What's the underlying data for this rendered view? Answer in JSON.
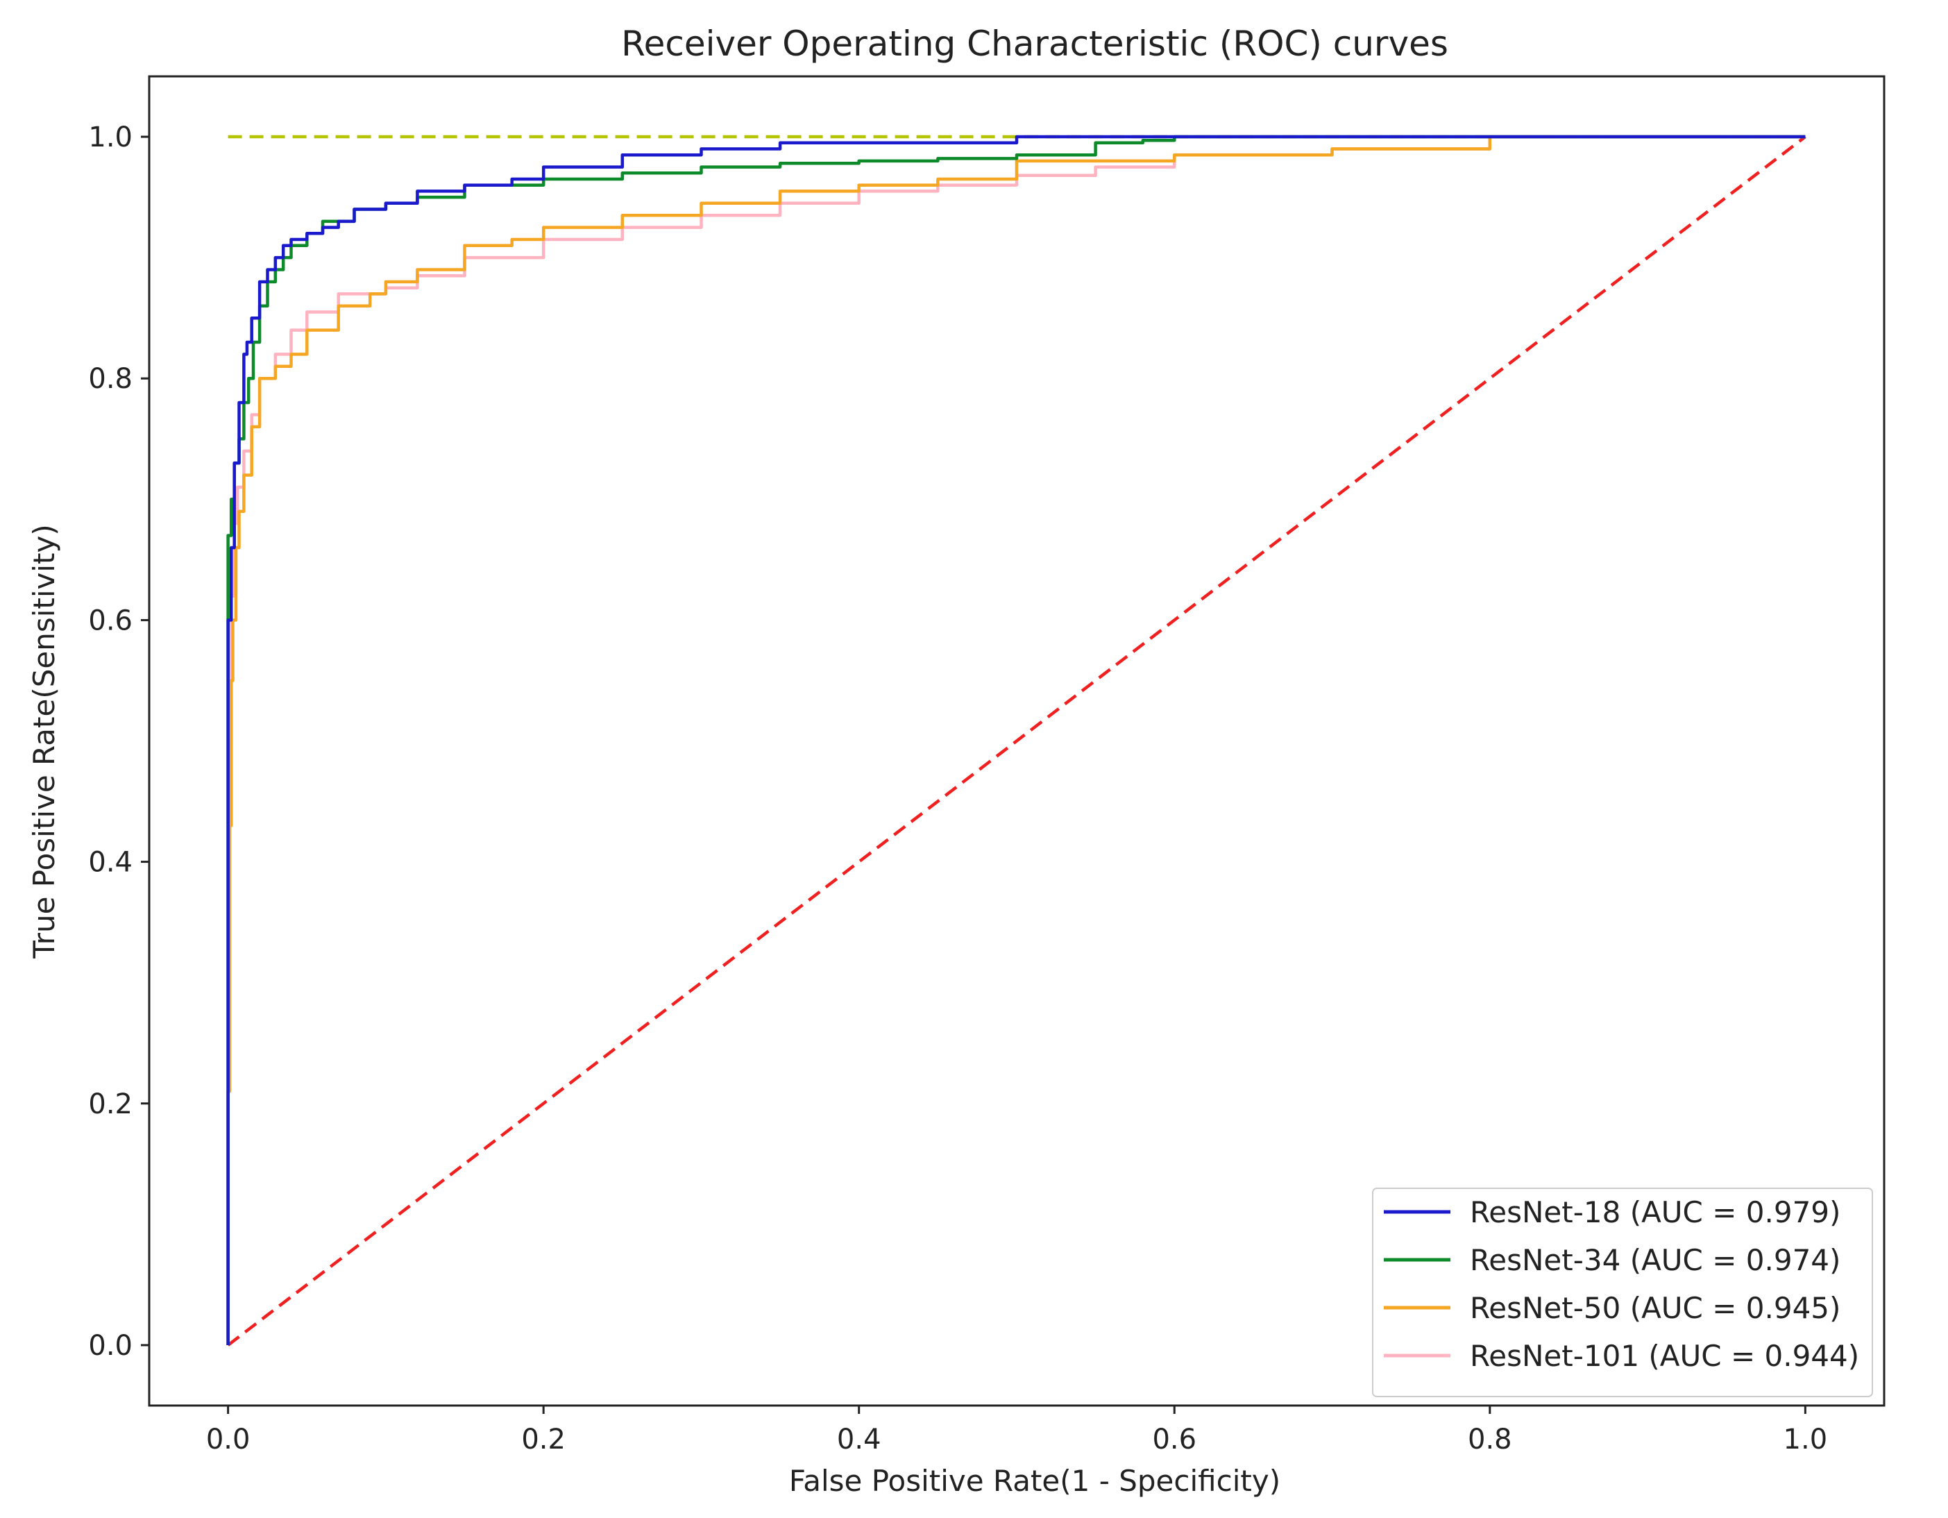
{
  "chart_data": {
    "type": "line",
    "title": "Receiver Operating Characteristic (ROC) curves",
    "xlabel": "False Positive Rate(1 - Specificity)",
    "ylabel": "True Positive Rate(Sensitivity)",
    "xlim": [
      -0.05,
      1.05
    ],
    "ylim": [
      -0.05,
      1.05
    ],
    "xticks": [
      0.0,
      0.2,
      0.4,
      0.6,
      0.8,
      1.0
    ],
    "xtick_labels": [
      "0.0",
      "0.2",
      "0.4",
      "0.6",
      "0.8",
      "1.0"
    ],
    "yticks": [
      0.0,
      0.2,
      0.4,
      0.6,
      0.8,
      1.0
    ],
    "ytick_labels": [
      "0.0",
      "0.2",
      "0.4",
      "0.6",
      "0.8",
      "1.0"
    ],
    "grid": false,
    "legend_position": "lower-right",
    "series": [
      {
        "name": "ResNet-18 (AUC = 0.979)",
        "color": "#1a1acc",
        "x": [
          0,
          0,
          0.002,
          0.004,
          0.007,
          0.01,
          0.012,
          0.015,
          0.02,
          0.025,
          0.03,
          0.035,
          0.04,
          0.05,
          0.06,
          0.07,
          0.08,
          0.1,
          0.12,
          0.15,
          0.18,
          0.2,
          0.25,
          0.3,
          0.35,
          0.4,
          0.5,
          0.6,
          0.7,
          0.8,
          0.9,
          1.0
        ],
        "y": [
          0,
          0.55,
          0.6,
          0.66,
          0.73,
          0.78,
          0.82,
          0.83,
          0.85,
          0.88,
          0.89,
          0.9,
          0.91,
          0.915,
          0.92,
          0.925,
          0.93,
          0.94,
          0.945,
          0.955,
          0.96,
          0.965,
          0.975,
          0.985,
          0.99,
          0.995,
          0.995,
          1.0,
          1.0,
          1.0,
          1.0,
          1.0
        ]
      },
      {
        "name": "ResNet-34 (AUC = 0.974)",
        "color": "#0d8a2a",
        "x": [
          0,
          0,
          0.002,
          0.004,
          0.007,
          0.01,
          0.013,
          0.016,
          0.02,
          0.025,
          0.03,
          0.035,
          0.04,
          0.05,
          0.06,
          0.08,
          0.1,
          0.12,
          0.15,
          0.2,
          0.25,
          0.3,
          0.35,
          0.4,
          0.45,
          0.5,
          0.55,
          0.58,
          0.6,
          0.7,
          0.8,
          0.9,
          1.0
        ],
        "y": [
          0,
          0.64,
          0.67,
          0.7,
          0.73,
          0.75,
          0.78,
          0.8,
          0.83,
          0.86,
          0.88,
          0.89,
          0.9,
          0.91,
          0.92,
          0.93,
          0.94,
          0.945,
          0.95,
          0.96,
          0.965,
          0.97,
          0.975,
          0.978,
          0.98,
          0.982,
          0.985,
          0.995,
          0.997,
          1.0,
          1.0,
          1.0,
          1.0
        ]
      },
      {
        "name": "ResNet-50 (AUC = 0.945)",
        "color": "#f5a623",
        "x": [
          0,
          0.001,
          0.002,
          0.003,
          0.005,
          0.007,
          0.01,
          0.015,
          0.02,
          0.03,
          0.04,
          0.05,
          0.07,
          0.09,
          0.1,
          0.12,
          0.15,
          0.18,
          0.2,
          0.25,
          0.3,
          0.35,
          0.4,
          0.45,
          0.5,
          0.6,
          0.7,
          0.8,
          0.9,
          1.0
        ],
        "y": [
          0,
          0.21,
          0.43,
          0.55,
          0.6,
          0.66,
          0.69,
          0.72,
          0.76,
          0.8,
          0.81,
          0.82,
          0.84,
          0.86,
          0.87,
          0.88,
          0.89,
          0.91,
          0.915,
          0.925,
          0.935,
          0.945,
          0.955,
          0.96,
          0.965,
          0.98,
          0.985,
          0.99,
          1.0,
          1.0
        ]
      },
      {
        "name": "ResNet-101 (AUC = 0.944)",
        "color": "#ffb3c1",
        "x": [
          0,
          0.001,
          0.002,
          0.004,
          0.006,
          0.01,
          0.015,
          0.02,
          0.03,
          0.04,
          0.05,
          0.07,
          0.1,
          0.12,
          0.15,
          0.2,
          0.25,
          0.3,
          0.35,
          0.4,
          0.45,
          0.5,
          0.55,
          0.6,
          0.7,
          0.8,
          0.9,
          1.0
        ],
        "y": [
          0,
          0.21,
          0.5,
          0.62,
          0.68,
          0.71,
          0.74,
          0.77,
          0.8,
          0.82,
          0.84,
          0.855,
          0.87,
          0.875,
          0.885,
          0.9,
          0.915,
          0.925,
          0.935,
          0.945,
          0.955,
          0.96,
          0.968,
          0.975,
          0.985,
          0.99,
          1.0,
          1.0
        ]
      },
      {
        "name": "",
        "color": "#f02020",
        "style": "dashed",
        "x": [
          0,
          1
        ],
        "y": [
          0,
          1
        ]
      },
      {
        "name": "",
        "color": "#b5c400",
        "style": "dashed",
        "x": [
          0,
          1
        ],
        "y": [
          1,
          1
        ]
      }
    ]
  }
}
